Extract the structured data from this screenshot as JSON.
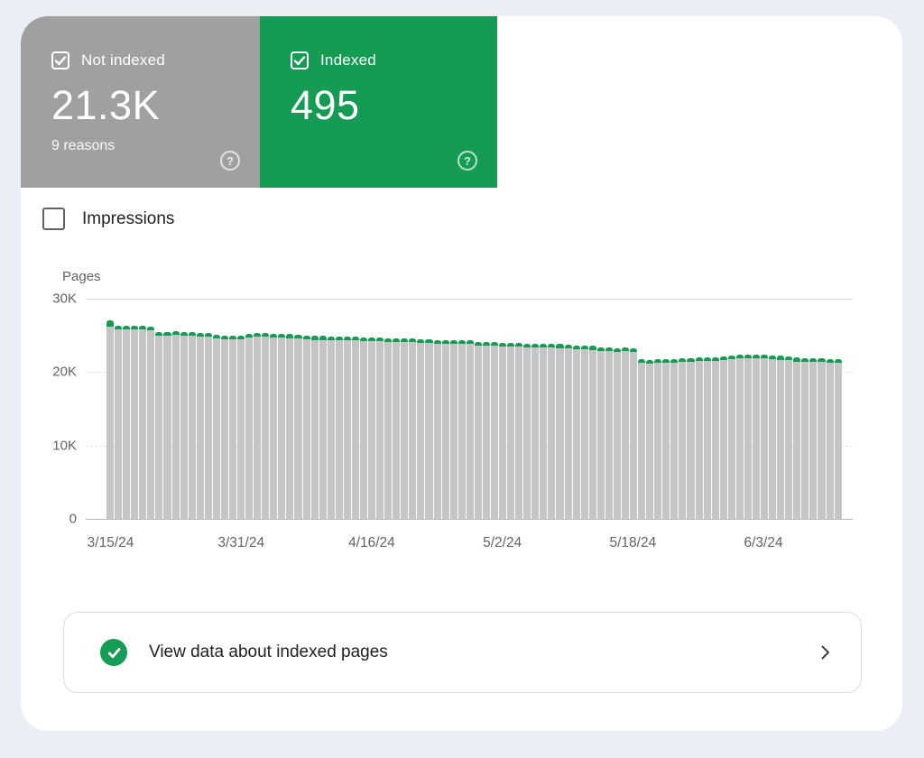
{
  "page": {
    "background": "#ebeff5",
    "surface": "#ffffff"
  },
  "summary_cards": {
    "not_indexed": {
      "label": "Not indexed",
      "value": "21.3K",
      "sub": "9 reasons",
      "checked": true,
      "color": "#a0a0a0"
    },
    "indexed": {
      "label": "Indexed",
      "value": "495",
      "checked": true,
      "color": "#159b54"
    }
  },
  "impressions_toggle": {
    "label": "Impressions",
    "checked": false
  },
  "chart_data": {
    "type": "bar",
    "stacked": true,
    "ylabel": "Pages",
    "ylim": [
      0,
      30000
    ],
    "grid": true,
    "legend_position": "none",
    "ytick_labels": [
      "30K",
      "20K",
      "10K",
      "0"
    ],
    "ytick_values": [
      30000,
      20000,
      10000,
      0
    ],
    "days_total": 90,
    "start_date": "3/15/24",
    "xtick_labels": [
      {
        "label": "3/15/24",
        "day": 0
      },
      {
        "label": "3/31/24",
        "day": 16
      },
      {
        "label": "4/16/24",
        "day": 32
      },
      {
        "label": "5/2/24",
        "day": 48
      },
      {
        "label": "5/18/24",
        "day": 64
      },
      {
        "label": "6/3/24",
        "day": 80
      }
    ],
    "series": [
      {
        "name": "Not indexed",
        "color": "#c5c5c5"
      },
      {
        "name": "Indexed",
        "color": "#159b54"
      }
    ],
    "totals": [
      27000,
      26300,
      26300,
      26350,
      26300,
      26250,
      25450,
      25500,
      25550,
      25500,
      25400,
      25350,
      25300,
      25050,
      25000,
      25000,
      25000,
      25250,
      25300,
      25300,
      25250,
      25200,
      25150,
      25100,
      24950,
      24900,
      24900,
      24850,
      24850,
      24800,
      24800,
      24750,
      24700,
      24700,
      24650,
      24600,
      24600,
      24550,
      24500,
      24450,
      24400,
      24400,
      24350,
      24300,
      24300,
      24150,
      24100,
      24050,
      24000,
      23950,
      23950,
      23900,
      23900,
      23850,
      23850,
      23800,
      23700,
      23650,
      23600,
      23550,
      23400,
      23350,
      23300,
      23350,
      23300,
      21750,
      21700,
      21750,
      21800,
      21800,
      21850,
      21900,
      22000,
      22000,
      22050,
      22100,
      22300,
      22350,
      22400,
      22400,
      22350,
      22300,
      22200,
      22150,
      21950,
      21900,
      21850,
      21850,
      21800,
      21800
    ],
    "indexed_counts": {
      "first": 800,
      "default": 500,
      "latest": 495
    }
  },
  "footer_link": {
    "label": "View data about indexed pages"
  },
  "icons": {
    "help": "?",
    "check": "✓",
    "chevron_right": "›"
  }
}
